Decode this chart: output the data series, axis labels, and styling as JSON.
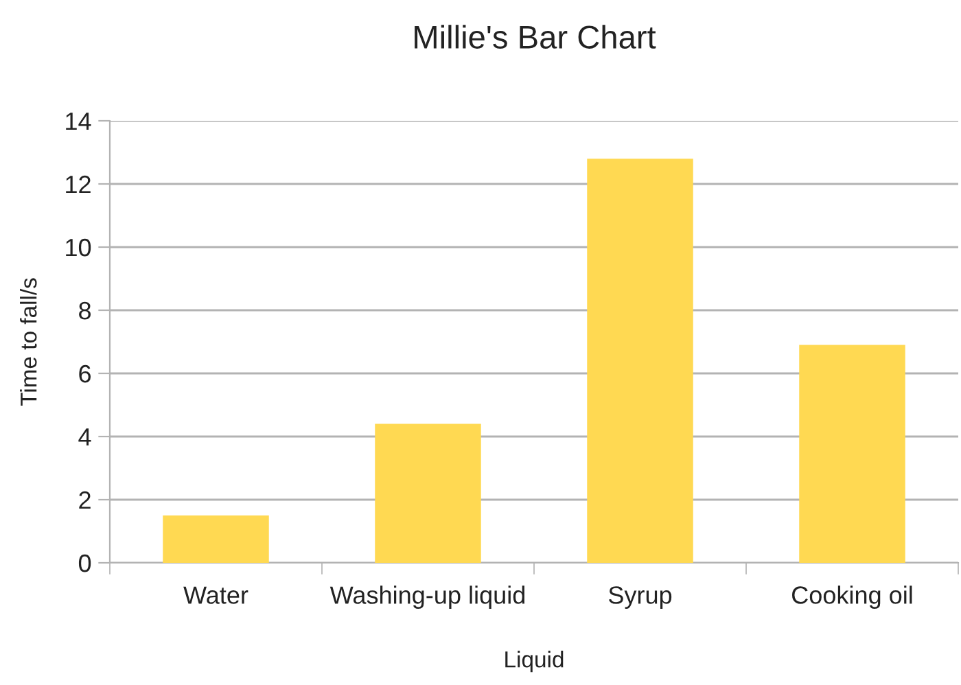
{
  "chart_data": {
    "type": "bar",
    "title": "Millie's Bar Chart",
    "xlabel": "Liquid",
    "ylabel": "Time to fall/s",
    "categories": [
      "Water",
      "Washing-up liquid",
      "Syrup",
      "Cooking oil"
    ],
    "values": [
      1.5,
      4.4,
      12.8,
      6.9
    ],
    "color": "#ffd952",
    "ylim": [
      0,
      14
    ],
    "yticks": [
      0,
      2,
      4,
      6,
      8,
      10,
      12,
      14
    ],
    "grid": "y"
  }
}
